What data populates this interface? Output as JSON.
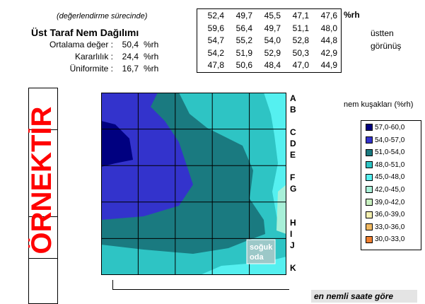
{
  "header": {
    "subtitle": "(değerlendirme sürecinde)",
    "title": "Üst Taraf Nem Dağılımı",
    "stats": [
      {
        "label": "Ortalama değer :",
        "value": "50,4",
        "unit": "%rh"
      },
      {
        "label": "Kararlılık :",
        "value": "24,4",
        "unit": "%rh"
      },
      {
        "label": "Üniformite :",
        "value": "16,7",
        "unit": "%rh"
      }
    ]
  },
  "grid_table": {
    "rows": [
      [
        "52,4",
        "49,7",
        "45,5",
        "47,1",
        "47,6"
      ],
      [
        "59,6",
        "56,4",
        "49,7",
        "51,1",
        "48,0"
      ],
      [
        "54,7",
        "55,2",
        "54,0",
        "52,8",
        "44,8"
      ],
      [
        "54,2",
        "51,9",
        "52,9",
        "50,3",
        "42,9"
      ],
      [
        "47,8",
        "50,6",
        "48,4",
        "47,0",
        "44,9"
      ]
    ],
    "unit_label": "%rh",
    "side_labels": [
      "üstten",
      "görünüş"
    ]
  },
  "watermark": "ÖRNEKTİR",
  "chart_data": {
    "type": "heatmap",
    "title": "",
    "row_letters": [
      "A",
      "B",
      "C",
      "D",
      "E",
      "F",
      "G",
      "H",
      "I",
      "J",
      "K"
    ],
    "annotation": [
      "soğuk",
      "oda"
    ],
    "legend_title": "nem kuşakları (%rh)",
    "legend_placement": "right",
    "bands": [
      {
        "label": "57,0-60,0",
        "color": "#000080"
      },
      {
        "label": "54,0-57,0",
        "color": "#3333cc"
      },
      {
        "label": "51,0-54,0",
        "color": "#1a7a80"
      },
      {
        "label": "48,0-51,0",
        "color": "#2ec4c4"
      },
      {
        "label": "45,0-48,0",
        "color": "#55f0f0"
      },
      {
        "label": "42,0-45,0",
        "color": "#a8f0d8"
      },
      {
        "label": "39,0-42,0",
        "color": "#c8f0c0"
      },
      {
        "label": "36,0-39,0",
        "color": "#f4f0b0"
      },
      {
        "label": "33,0-36,0",
        "color": "#f0b860"
      },
      {
        "label": "30,0-33,0",
        "color": "#f08030"
      }
    ],
    "values": [
      [
        52.4,
        49.7,
        45.5,
        47.1,
        47.6
      ],
      [
        59.6,
        56.4,
        49.7,
        51.1,
        48.0
      ],
      [
        54.7,
        55.2,
        54.0,
        52.8,
        44.8
      ],
      [
        54.2,
        51.9,
        52.9,
        50.3,
        42.9
      ],
      [
        47.8,
        50.6,
        48.4,
        47.0,
        44.9
      ]
    ],
    "grid": true
  },
  "footer": "en nemli saate göre"
}
